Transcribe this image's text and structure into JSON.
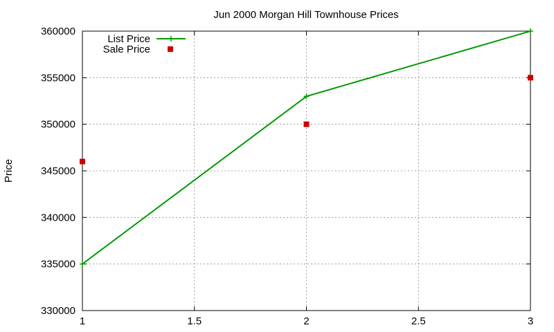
{
  "chart_data": {
    "type": "line",
    "title": "Jun 2000 Morgan Hill Townhouse Prices",
    "xlabel": "",
    "ylabel": "Price",
    "xlim": [
      1,
      3
    ],
    "ylim": [
      330000,
      360000
    ],
    "xticks": [
      1,
      1.5,
      2,
      2.5,
      3
    ],
    "yticks": [
      330000,
      335000,
      340000,
      345000,
      350000,
      355000,
      360000
    ],
    "xtick_labels": [
      "1",
      "1.5",
      "2",
      "2.5",
      "3"
    ],
    "ytick_labels": [
      "330000",
      "335000",
      "340000",
      "345000",
      "350000",
      "355000",
      "360000"
    ],
    "grid": true,
    "legend_position": "top-left",
    "series": [
      {
        "name": "List Price",
        "style": "line+cross",
        "color": "#009900",
        "x": [
          1,
          2,
          3
        ],
        "y": [
          335000,
          353000,
          360000
        ]
      },
      {
        "name": "Sale Price",
        "style": "square-markers",
        "color": "#cc0000",
        "x": [
          1,
          2,
          3
        ],
        "y": [
          346000,
          350000,
          355000
        ]
      }
    ]
  }
}
